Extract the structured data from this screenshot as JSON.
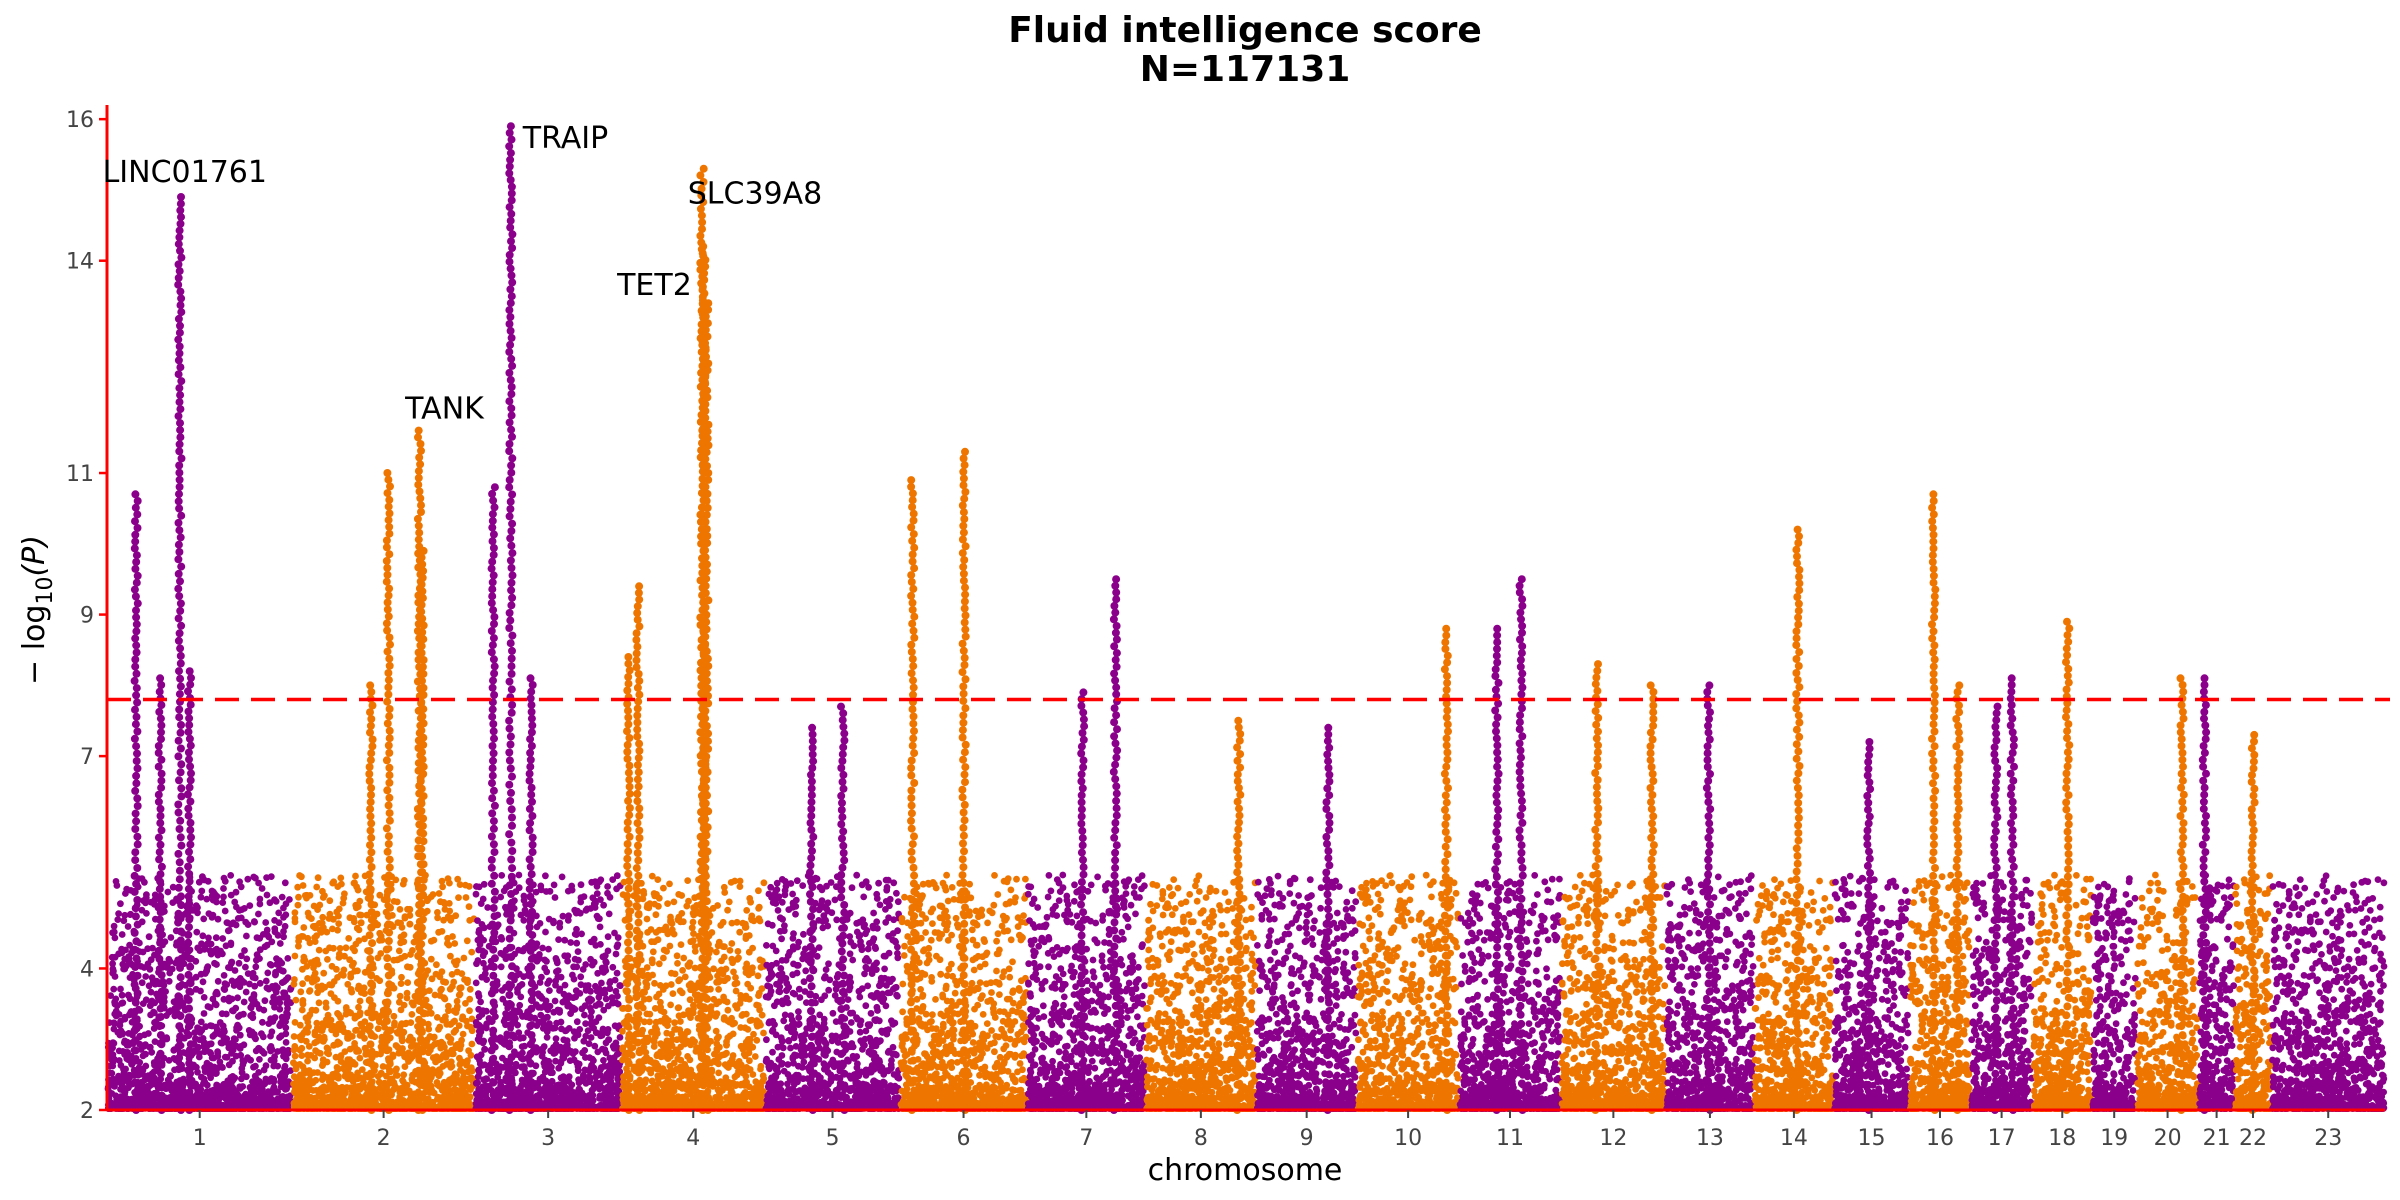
{
  "chart_data": {
    "type": "scatter",
    "subtype": "manhattan",
    "title": "Fluid intelligence score",
    "subtitle": "N=117131",
    "xlabel": "chromosome",
    "ylabel": "− log10(P)",
    "ylabel_parts": {
      "prefix": "− log",
      "subscript": "10",
      "suffix": "(P)"
    },
    "ylim": [
      2,
      16.2
    ],
    "yticks": [
      2,
      4,
      7,
      9,
      11,
      14,
      16
    ],
    "significance_threshold": 7.8,
    "colors": {
      "odd": "#8B008B",
      "even": "#EE7600",
      "threshold": "#FF0000",
      "axis": "#FF0000"
    },
    "chromosomes": [
      {
        "label": "1",
        "range": [
          0,
          191
        ]
      },
      {
        "label": "2",
        "range": [
          191,
          379
        ]
      },
      {
        "label": "3",
        "range": [
          379,
          530
        ]
      },
      {
        "label": "4",
        "range": [
          530,
          678
        ]
      },
      {
        "label": "5",
        "range": [
          678,
          817
        ]
      },
      {
        "label": "6",
        "range": [
          817,
          948
        ]
      },
      {
        "label": "7",
        "range": [
          948,
          1070
        ]
      },
      {
        "label": "8",
        "range": [
          1070,
          1184
        ]
      },
      {
        "label": "9",
        "range": [
          1184,
          1288
        ]
      },
      {
        "label": "10",
        "range": [
          1288,
          1393
        ]
      },
      {
        "label": "11",
        "range": [
          1393,
          1498
        ]
      },
      {
        "label": "12",
        "range": [
          1498,
          1606
        ]
      },
      {
        "label": "13",
        "range": [
          1606,
          1697
        ]
      },
      {
        "label": "14",
        "range": [
          1697,
          1779
        ]
      },
      {
        "label": "15",
        "range": [
          1779,
          1857
        ]
      },
      {
        "label": "16",
        "range": [
          1857,
          1920
        ]
      },
      {
        "label": "17",
        "range": [
          1920,
          1984
        ]
      },
      {
        "label": "18",
        "range": [
          1984,
          2045
        ]
      },
      {
        "label": "19",
        "range": [
          2045,
          2091
        ]
      },
      {
        "label": "20",
        "range": [
          2091,
          2155
        ]
      },
      {
        "label": "21",
        "range": [
          2155,
          2192
        ]
      },
      {
        "label": "22",
        "range": [
          2192,
          2230
        ]
      },
      {
        "label": "23",
        "range": [
          2230,
          2347
        ]
      }
    ],
    "peaks": [
      {
        "x": 30,
        "y": 10.7
      },
      {
        "x": 55,
        "y": 8.1
      },
      {
        "x": 75,
        "y": 14.9
      },
      {
        "x": 85,
        "y": 8.2
      },
      {
        "x": 272,
        "y": 8.0
      },
      {
        "x": 290,
        "y": 11.0
      },
      {
        "x": 322,
        "y": 11.6
      },
      {
        "x": 325,
        "y": 9.9
      },
      {
        "x": 398,
        "y": 10.8
      },
      {
        "x": 416,
        "y": 15.9
      },
      {
        "x": 437,
        "y": 8.1
      },
      {
        "x": 537,
        "y": 8.4
      },
      {
        "x": 547,
        "y": 9.4
      },
      {
        "x": 613,
        "y": 15.3
      },
      {
        "x": 615,
        "y": 14.2
      },
      {
        "x": 618,
        "y": 13.4
      },
      {
        "x": 726,
        "y": 7.4
      },
      {
        "x": 758,
        "y": 7.7
      },
      {
        "x": 830,
        "y": 10.9
      },
      {
        "x": 883,
        "y": 11.3
      },
      {
        "x": 1005,
        "y": 7.9
      },
      {
        "x": 1039,
        "y": 9.5
      },
      {
        "x": 1166,
        "y": 7.5
      },
      {
        "x": 1258,
        "y": 7.4
      },
      {
        "x": 1380,
        "y": 8.8
      },
      {
        "x": 1432,
        "y": 8.8
      },
      {
        "x": 1457,
        "y": 9.5
      },
      {
        "x": 1535,
        "y": 8.3
      },
      {
        "x": 1592,
        "y": 8.0
      },
      {
        "x": 1650,
        "y": 8.0
      },
      {
        "x": 1742,
        "y": 10.2
      },
      {
        "x": 1815,
        "y": 7.2
      },
      {
        "x": 1882,
        "y": 10.7
      },
      {
        "x": 1907,
        "y": 8.0
      },
      {
        "x": 1946,
        "y": 7.7
      },
      {
        "x": 1963,
        "y": 8.1
      },
      {
        "x": 2020,
        "y": 8.9
      },
      {
        "x": 2138,
        "y": 8.1
      },
      {
        "x": 2161,
        "y": 8.1
      },
      {
        "x": 2211,
        "y": 7.3
      }
    ],
    "annotations": [
      {
        "text": "LINC01761",
        "x": 75,
        "y": 14.9
      },
      {
        "text": "TANK",
        "x": 322,
        "y": 11.6
      },
      {
        "text": "TRAIP",
        "x": 416,
        "y": 15.9
      },
      {
        "text": "SLC39A8",
        "x": 613,
        "y": 15.3
      },
      {
        "text": "TET2",
        "x": 618,
        "y": 13.4
      }
    ],
    "grid": false
  }
}
